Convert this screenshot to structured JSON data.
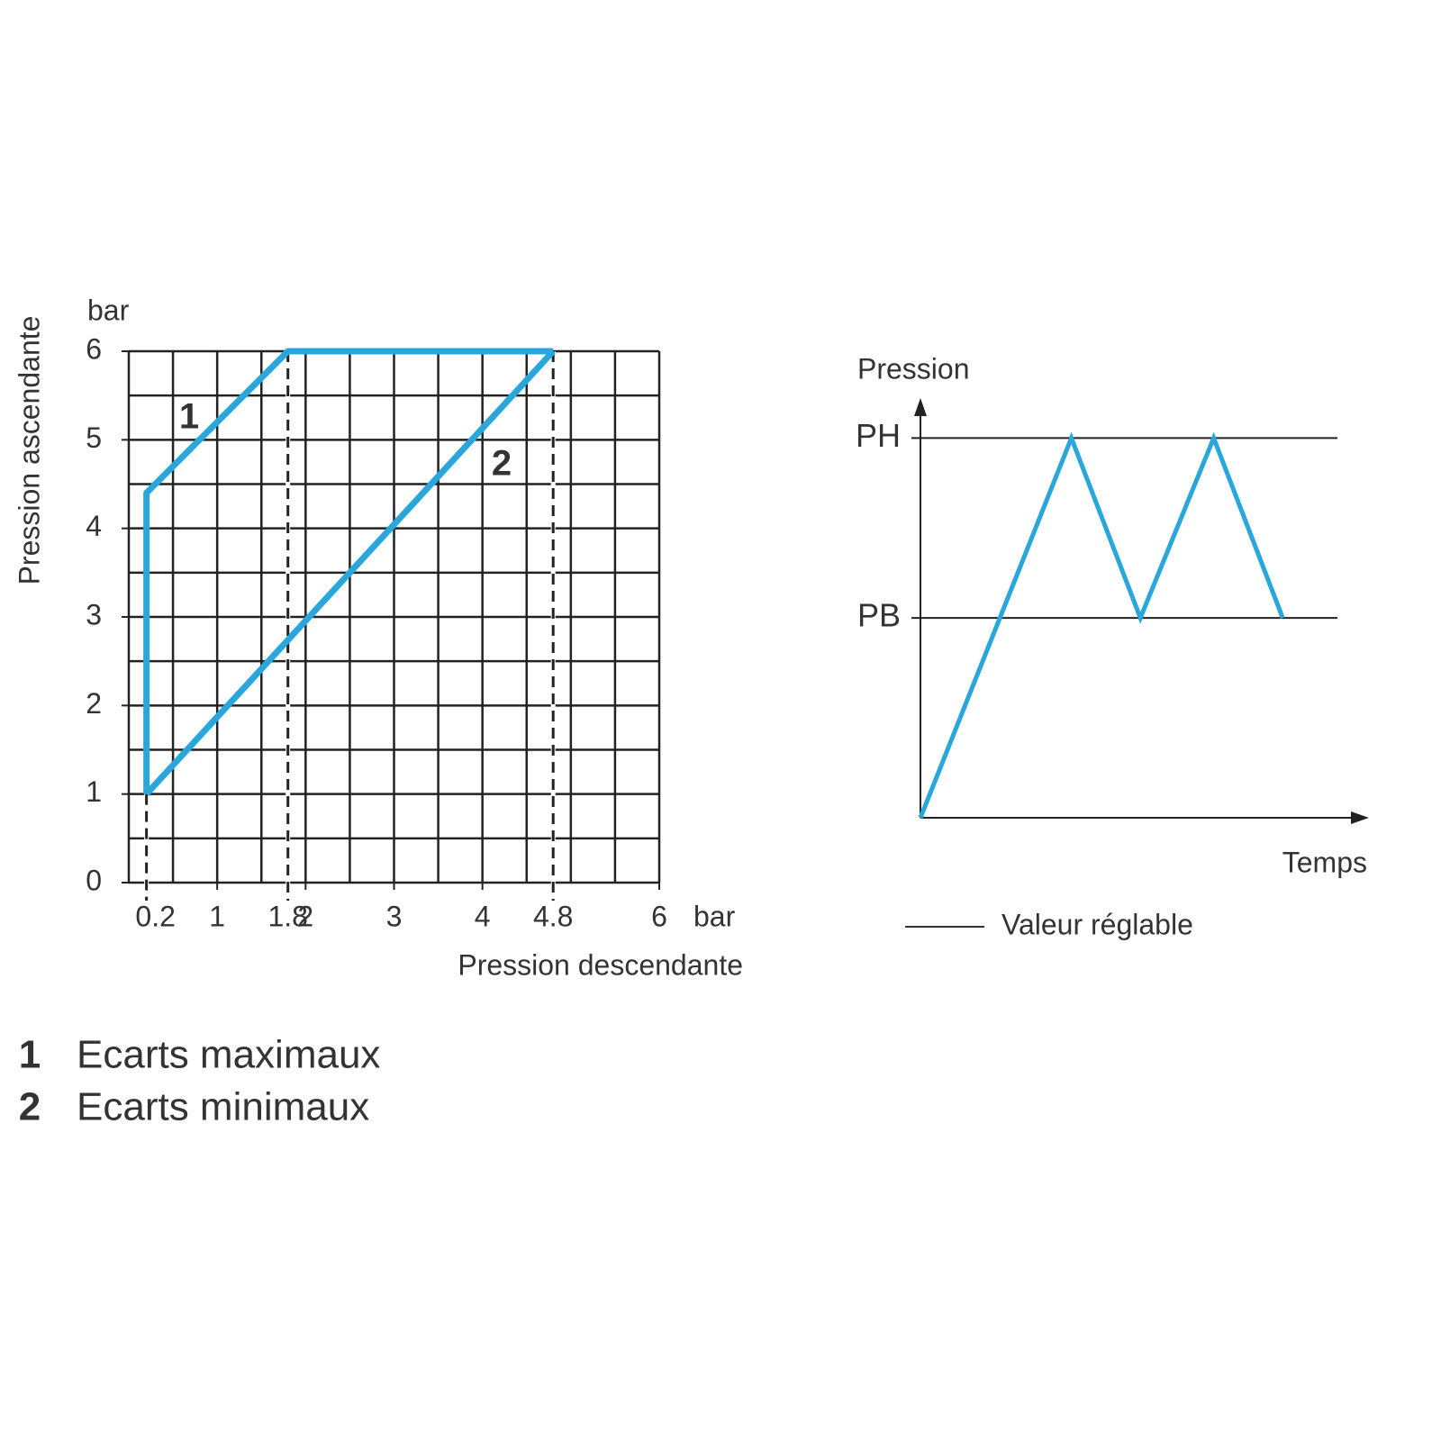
{
  "chart_data": [
    {
      "type": "line",
      "x_label": "Pression descendante",
      "y_label": "Pression ascendante",
      "x_unit": "bar",
      "y_unit": "bar",
      "xlim": [
        0,
        6
      ],
      "ylim": [
        0,
        6
      ],
      "xticks": [
        0.2,
        1,
        1.8,
        2,
        3,
        4,
        4.8,
        6
      ],
      "yticks": [
        0,
        1,
        2,
        3,
        4,
        5,
        6
      ],
      "grid_lines": [
        0,
        0.5,
        1,
        1.5,
        2,
        2.5,
        3,
        3.5,
        4,
        4.5,
        5,
        5.5,
        6
      ],
      "guides": [
        {
          "x": 0.2,
          "y": 1
        },
        {
          "x": 1.8,
          "y": 6
        },
        {
          "x": 4.8,
          "y": 6
        }
      ],
      "series": [
        {
          "marker": "1",
          "name": "Ecarts maximaux",
          "color": "#29a7dc",
          "x": [
            0.2,
            0.2,
            1.8,
            4.8
          ],
          "values": [
            1,
            4.4,
            6,
            6
          ]
        },
        {
          "marker": "2",
          "name": "Ecarts minimaux",
          "color": "#29a7dc",
          "x": [
            0.2,
            4.8
          ],
          "values": [
            1,
            6
          ]
        }
      ]
    },
    {
      "type": "line",
      "x_label": "Temps",
      "y_label": "Pression",
      "xlim": [
        0,
        10.4
      ],
      "ylim": [
        0,
        2.1
      ],
      "yticks": [
        {
          "value": 1,
          "label": "PB"
        },
        {
          "value": 1.9,
          "label": "PH"
        }
      ],
      "note": "Valeur réglable",
      "series": [
        {
          "color": "#29a7dc",
          "x": [
            0,
            3.5,
            5.1,
            6.8,
            8.4
          ],
          "values": [
            0,
            1.9,
            1,
            1.9,
            1
          ]
        }
      ]
    }
  ]
}
